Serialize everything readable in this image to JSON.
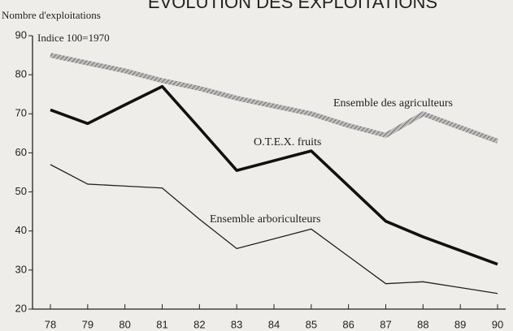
{
  "chart_data": {
    "type": "line",
    "title": "EVOLUTION DES EXPLOITATIONS",
    "y_label": "Nombre d'exploitations",
    "subtitle": "Indice 100=1970",
    "categories": [
      "78",
      "79",
      "80",
      "81",
      "82",
      "83",
      "84",
      "85",
      "86",
      "87",
      "88",
      "89",
      "90"
    ],
    "series": [
      {
        "name": "Ensemble des agriculteurs",
        "color": "#9a9a9a",
        "values": [
          85,
          83,
          81,
          78.5,
          76.5,
          74,
          72,
          70,
          67,
          64.5,
          70,
          66.5,
          63
        ]
      },
      {
        "name": "O.T.E.X. fruits",
        "color": "#111111",
        "values": [
          71,
          67.5,
          72.3,
          77,
          66.3,
          55.5,
          58,
          60.5,
          51.5,
          42.5,
          38.5,
          35,
          31.5
        ]
      },
      {
        "name": "Ensemble arboriculteurs",
        "color": "#222222",
        "values": [
          57,
          52,
          51.5,
          51,
          43,
          35.5,
          38,
          40.5,
          33.5,
          26.5,
          27,
          25.5,
          24
        ]
      }
    ],
    "ylim": [
      20,
      90
    ],
    "yticks": [
      20,
      30,
      40,
      50,
      60,
      70,
      80,
      90
    ],
    "grid": false
  }
}
